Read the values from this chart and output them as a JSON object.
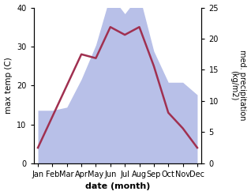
{
  "months": [
    "Jan",
    "Feb",
    "Mar",
    "Apr",
    "May",
    "Jun",
    "Jul",
    "Aug",
    "Sep",
    "Oct",
    "Nov",
    "Dec"
  ],
  "temperature": [
    4,
    12,
    20,
    28,
    27,
    35,
    33,
    35,
    25,
    13,
    9,
    4
  ],
  "precipitation_kg": [
    8.5,
    8.5,
    9,
    13.5,
    19,
    27,
    24,
    27,
    18,
    13,
    13,
    11
  ],
  "temp_ylim": [
    0,
    40
  ],
  "precip_ylim": [
    0,
    28.57
  ],
  "temp_color": "#a03050",
  "precip_fill_color": "#b8c0e8",
  "precip_edge_color": "#b8c0e8",
  "xlabel": "date (month)",
  "ylabel_left": "max temp (C)",
  "ylabel_right": "med. precipitation\n(kg/m2)",
  "temp_yticks": [
    0,
    10,
    20,
    30,
    40
  ],
  "precip_yticks": [
    0,
    5,
    10,
    15,
    20,
    25
  ],
  "background_color": "#ffffff",
  "line_width": 1.8
}
